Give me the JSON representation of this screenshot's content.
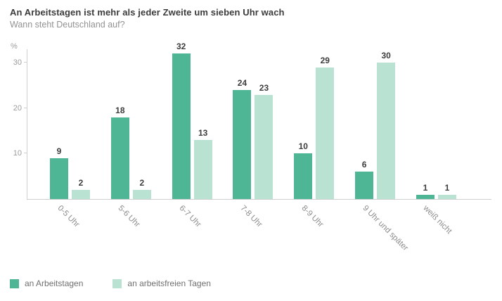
{
  "header": {
    "title": "An Arbeitstagen ist mehr als jeder Zweite um sieben Uhr wach",
    "subtitle": "Wann steht Deutschland auf?"
  },
  "chart_data": {
    "type": "bar",
    "title": "An Arbeitstagen ist mehr als jeder Zweite um sieben Uhr wach",
    "subtitle": "Wann steht Deutschland auf?",
    "categories": [
      "0-5 Uhr",
      "5-6 Uhr",
      "6-7 Uhr",
      "7-8 Uhr",
      "8-9 Uhr",
      "9 Uhr und später",
      "weiß nicht"
    ],
    "series": [
      {
        "name": "an Arbeitstagen",
        "color": "#4fb695",
        "values": [
          9,
          18,
          32,
          24,
          10,
          6,
          1
        ]
      },
      {
        "name": "an arbeitsfreien Tagen",
        "color": "#b9e2d2",
        "values": [
          2,
          2,
          13,
          23,
          29,
          30,
          1
        ]
      }
    ],
    "xlabel": "",
    "ylabel": "%",
    "yticks": [
      10,
      20,
      30
    ],
    "ylim": [
      0,
      33
    ],
    "grid": false,
    "legend_position": "bottom-left",
    "axis_color": "#cfcfcf",
    "tick_label_color": "#9b9b9b",
    "value_label_color": "#3d3d3d"
  }
}
